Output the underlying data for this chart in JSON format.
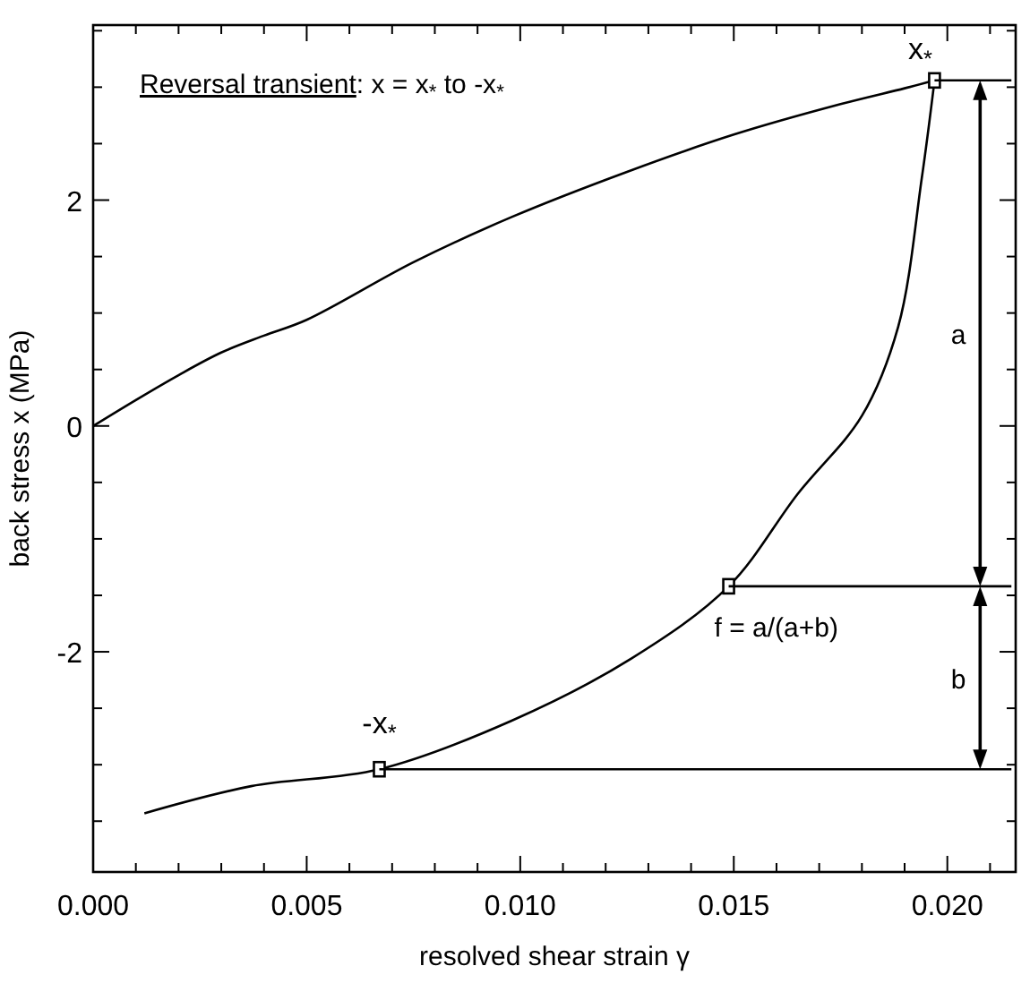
{
  "chart_data": {
    "type": "line",
    "xlabel": "resolved shear strain  γ",
    "ylabel": "back stress x (MPa)",
    "xlim": [
      0,
      0.0216
    ],
    "ylim": [
      -3.95,
      3.55
    ],
    "xticks": [
      {
        "value": 0,
        "label": "0.000"
      },
      {
        "value": 0.001,
        "label": null
      },
      {
        "value": 0.002,
        "label": null
      },
      {
        "value": 0.003,
        "label": null
      },
      {
        "value": 0.004,
        "label": null
      },
      {
        "value": 0.005,
        "label": "0.005"
      },
      {
        "value": 0.006,
        "label": null
      },
      {
        "value": 0.007,
        "label": null
      },
      {
        "value": 0.008,
        "label": null
      },
      {
        "value": 0.009,
        "label": null
      },
      {
        "value": 0.01,
        "label": "0.010"
      },
      {
        "value": 0.011,
        "label": null
      },
      {
        "value": 0.012,
        "label": null
      },
      {
        "value": 0.013,
        "label": null
      },
      {
        "value": 0.014,
        "label": null
      },
      {
        "value": 0.015,
        "label": "0.015"
      },
      {
        "value": 0.016,
        "label": null
      },
      {
        "value": 0.017,
        "label": null
      },
      {
        "value": 0.018,
        "label": null
      },
      {
        "value": 0.019,
        "label": null
      },
      {
        "value": 0.02,
        "label": "0.020"
      },
      {
        "value": 0.021,
        "label": null
      }
    ],
    "yticks": [
      {
        "value": -3.5,
        "label": null
      },
      {
        "value": -3,
        "label": null
      },
      {
        "value": -2.5,
        "label": null
      },
      -2,
      {
        "value": -1.5,
        "label": null
      },
      {
        "value": -1,
        "label": null
      },
      {
        "value": -0.5,
        "label": null
      },
      0,
      {
        "value": 0.5,
        "label": null
      },
      {
        "value": 1,
        "label": null
      },
      {
        "value": 1.5,
        "label": null
      },
      2,
      {
        "value": 2.5,
        "label": null
      },
      {
        "value": 3,
        "label": null
      },
      {
        "value": 3.5,
        "label": null
      }
    ],
    "grid": false,
    "marker": "none",
    "line_style": "solid",
    "series": [
      {
        "color": "#000000",
        "x": [
          0,
          0.001,
          0.002,
          0.003,
          0.004,
          0.005,
          0.0075,
          0.0098,
          0.0125,
          0.015,
          0.0175,
          0.019,
          0.0197
        ],
        "values": [
          0,
          0.23,
          0.45,
          0.65,
          0.8,
          0.94,
          1.45,
          1.85,
          2.25,
          2.58,
          2.85,
          2.99,
          3.06
        ]
      },
      {
        "color": "#000000",
        "x": [
          0.0197,
          0.0194,
          0.01885,
          0.018,
          0.0165,
          0.01488,
          0.0126,
          0.0098,
          0.0067,
          0.0037,
          0.0012
        ],
        "values": [
          3.06,
          2.19,
          0.88,
          0.09,
          -0.6,
          -1.42,
          -2.06,
          -2.61,
          -3.04,
          -3.19,
          -3.43
        ]
      },
      {
        "type": "scatter",
        "marker": "square",
        "color": "#000000",
        "x": [
          0.0197,
          0.01488,
          0.0067
        ],
        "values": [
          3.06,
          -1.42,
          -3.04
        ]
      },
      {
        "color": "#000000",
        "x": [
          0.0197,
          0.0215
        ],
        "values": [
          3.06,
          3.06
        ]
      },
      {
        "color": "#000000",
        "x": [
          0.01488,
          0.0215
        ],
        "values": [
          -1.42,
          -1.42
        ]
      },
      {
        "color": "#000000",
        "x": [
          0.0067,
          0.0215
        ],
        "values": [
          -3.04,
          -3.04
        ]
      }
    ],
    "annotations": [
      "Reversal transient:  x = x$_{*}$  to  -x$_{*}$",
      {
        "text": "x$_{*}$",
        "x": 0.0197,
        "y": 3.06
      },
      {
        "text": "-x$_{*}$",
        "x": 0.0067,
        "y": -3.04
      },
      {
        "text": "f = a/(a+b)",
        "x": 0.01488,
        "y": -1.42
      },
      "a",
      "b"
    ]
  }
}
